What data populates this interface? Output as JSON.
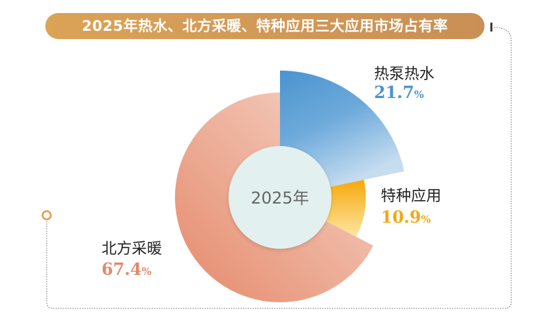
{
  "title": "2025年热水、北方采暖、特种应用三大应用市场占有率",
  "chart_data": {
    "type": "pie",
    "variant": "rose-donut",
    "center_label": "2025年",
    "categories": [
      "热泵热水",
      "特种应用",
      "北方采暖"
    ],
    "values": [
      21.7,
      10.9,
      67.4
    ],
    "unit": "%",
    "colors": [
      "#4a94cf",
      "#f7ac14",
      "#e58c6c"
    ],
    "legend": "none"
  }
}
